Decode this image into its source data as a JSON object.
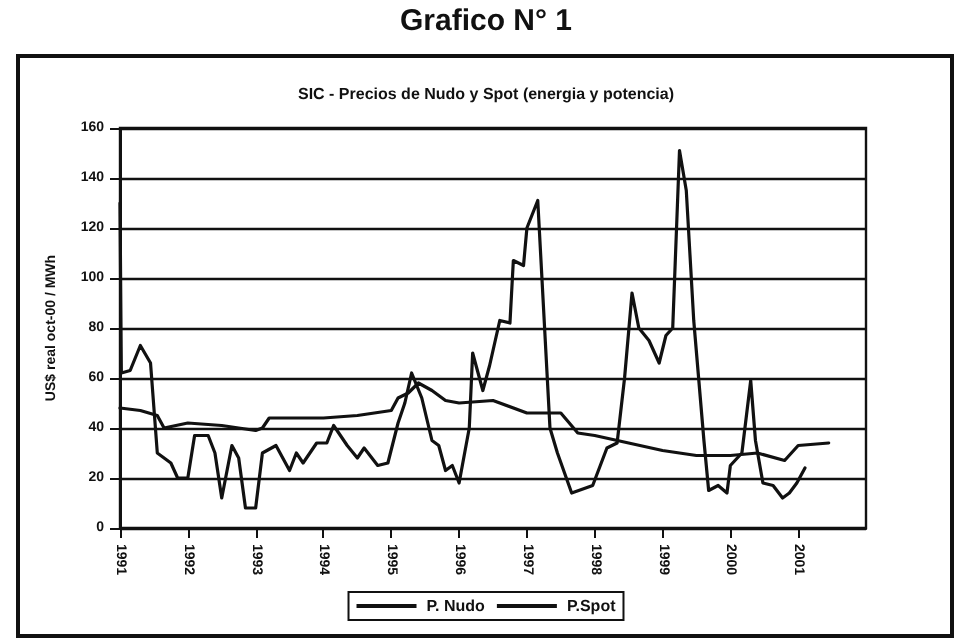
{
  "chart_data": {
    "type": "line",
    "title": "Grafico N° 1",
    "subtitle": "SIC - Precios de Nudo y Spot (energia y potencia)",
    "ylabel": "US$ real oct-00 / MWh",
    "xlim": [
      1991,
      2002
    ],
    "xticks": [
      1991,
      1992,
      1993,
      1994,
      1995,
      1996,
      1997,
      1998,
      1999,
      2000,
      2001
    ],
    "ylim": [
      0,
      160
    ],
    "yticks": [
      0,
      20,
      40,
      60,
      80,
      100,
      120,
      140,
      160
    ],
    "grid": "y",
    "legend": "bottom",
    "marker": "none",
    "line_style": "solid",
    "series": [
      {
        "name": "P. Nudo",
        "color": "#111111",
        "x": [
          1991,
          1991.3,
          1991.55,
          1991.65,
          1992,
          1992.5,
          1993,
          1993.1,
          1993.2,
          1994,
          1994.5,
          1995,
          1995.1,
          1995.25,
          1995.4,
          1995.6,
          1995.8,
          1996,
          1996.5,
          1997,
          1997.5,
          1997.75,
          1998,
          1998.5,
          1999,
          1999.5,
          2000,
          2000.4,
          2000.8,
          2001,
          2001.45
        ],
        "values": [
          48,
          47,
          45,
          40,
          42,
          41,
          39,
          40,
          44,
          44,
          45,
          47,
          52,
          54,
          58,
          55,
          51,
          50,
          51,
          46,
          46,
          38,
          37,
          34,
          31,
          29,
          29,
          30,
          27,
          33,
          34
        ]
      },
      {
        "name": "P.Spot",
        "color": "#111111",
        "x": [
          1991,
          1991.02,
          1991.15,
          1991.3,
          1991.45,
          1991.55,
          1991.75,
          1991.85,
          1992,
          1992.1,
          1992.3,
          1992.4,
          1992.5,
          1992.65,
          1992.75,
          1992.85,
          1993,
          1993.1,
          1993.3,
          1993.5,
          1993.6,
          1993.7,
          1993.9,
          1994.05,
          1994.15,
          1994.35,
          1994.5,
          1994.6,
          1994.8,
          1994.95,
          1995.1,
          1995.2,
          1995.3,
          1995.45,
          1995.6,
          1995.7,
          1995.8,
          1995.9,
          1996,
          1996.15,
          1996.2,
          1996.35,
          1996.45,
          1996.6,
          1996.75,
          1996.8,
          1996.95,
          1997,
          1997.16,
          1997.34,
          1997.45,
          1997.66,
          1997.97,
          1998.18,
          1998.33,
          1998.44,
          1998.55,
          1998.65,
          1998.8,
          1998.95,
          1999.05,
          1999.15,
          1999.25,
          1999.35,
          1999.46,
          1999.61,
          1999.68,
          1999.82,
          1999.95,
          2000,
          2000.17,
          2000.3,
          2000.37,
          2000.48,
          2000.63,
          2000.77,
          2000.87,
          2000.98,
          2001.1
        ],
        "values": [
          130,
          62,
          63,
          73,
          66,
          30,
          26,
          20,
          20,
          37,
          37,
          30,
          12,
          33,
          28,
          8,
          8,
          30,
          33,
          23,
          30,
          26,
          34,
          34,
          41,
          33,
          28,
          32,
          25,
          26,
          42,
          50,
          62,
          52,
          35,
          33,
          23,
          25,
          18,
          40,
          70,
          55,
          65,
          83,
          82,
          107,
          105,
          120,
          131,
          40,
          30,
          14,
          17,
          32,
          34,
          60,
          94,
          80,
          75,
          66,
          77,
          80,
          151,
          135,
          83,
          35,
          15,
          17,
          14,
          25,
          30,
          59,
          35,
          18,
          17,
          12,
          14,
          18,
          24
        ]
      }
    ]
  }
}
